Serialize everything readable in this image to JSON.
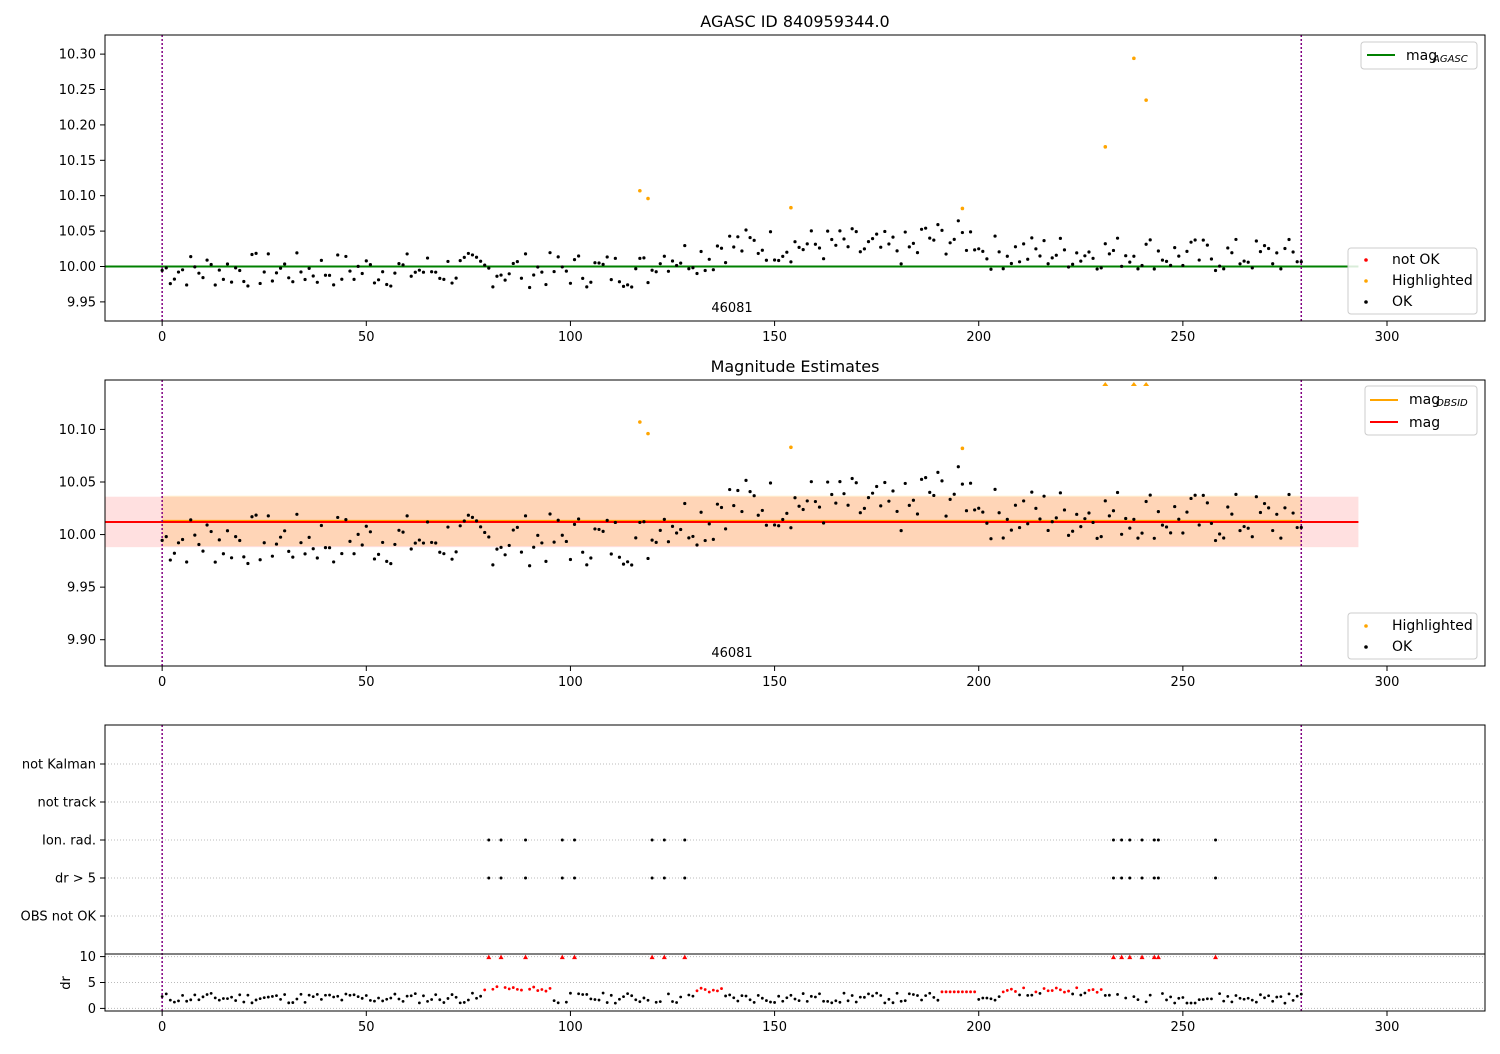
{
  "chart_data": [
    {
      "type": "scatter",
      "title": "AGASC ID 840959344.0",
      "xlim": [
        -14,
        324
      ],
      "ylim": [
        9.923,
        10.327
      ],
      "xticks": [
        0,
        50,
        100,
        150,
        200,
        250,
        300
      ],
      "yticks": [
        9.95,
        10.0,
        10.05,
        10.1,
        10.15,
        10.2,
        10.25,
        10.3
      ],
      "ytick_labels": [
        "9.95",
        "10.00",
        "10.05",
        "10.10",
        "10.15",
        "10.20",
        "10.25",
        "10.30"
      ],
      "obsid_label": "46081",
      "vlines": [
        0,
        279
      ],
      "mag_agasc": 10.0,
      "line_legend": {
        "entries": [
          {
            "label": "mag",
            "sub": "AGASC",
            "color": "#008000"
          }
        ],
        "position": "top-right"
      },
      "point_legend": {
        "entries": [
          {
            "label": "not OK",
            "color": "#ff0000"
          },
          {
            "label": "Highlighted",
            "color": "#ffa500"
          },
          {
            "label": "OK",
            "color": "#000000"
          }
        ],
        "position": "bottom-right"
      },
      "highlighted": [
        [
          117,
          10.107
        ],
        [
          119,
          10.096
        ],
        [
          154,
          10.083
        ],
        [
          196,
          10.082
        ],
        [
          231,
          10.169
        ],
        [
          238,
          10.294
        ],
        [
          241,
          10.235
        ]
      ]
    },
    {
      "type": "scatter",
      "title": "Magnitude Estimates",
      "xlim": [
        -14,
        324
      ],
      "ylim": [
        9.875,
        10.147
      ],
      "xticks": [
        0,
        50,
        100,
        150,
        200,
        250,
        300
      ],
      "yticks": [
        9.9,
        9.95,
        10.0,
        10.05,
        10.1
      ],
      "ytick_labels": [
        "9.90",
        "9.95",
        "10.00",
        "10.05",
        "10.10"
      ],
      "obsid_label": "46081",
      "vlines": [
        0,
        279
      ],
      "mag": 10.012,
      "mag_band": [
        9.988,
        10.036
      ],
      "mag_obsid": 10.013,
      "mag_obsid_band": [
        9.989,
        10.037
      ],
      "line_legend": {
        "entries": [
          {
            "label": "mag",
            "sub": "OBSID",
            "color": "#ffa500"
          },
          {
            "label": "mag",
            "sub": "",
            "color": "#ff0000"
          }
        ],
        "position": "top-right"
      },
      "point_legend": {
        "entries": [
          {
            "label": "Highlighted",
            "color": "#ffa500"
          },
          {
            "label": "OK",
            "color": "#000000"
          }
        ],
        "position": "bottom-right"
      },
      "highlighted": [
        [
          117,
          10.107
        ],
        [
          119,
          10.096
        ],
        [
          154,
          10.083
        ],
        [
          196,
          10.082
        ]
      ],
      "off_scale_markers_x": [
        231,
        238,
        241
      ]
    },
    {
      "type": "scatter",
      "title": "",
      "xlim": [
        -14,
        324
      ],
      "xticks": [
        0,
        50,
        100,
        150,
        200,
        250,
        300
      ],
      "vlines": [
        0,
        279
      ],
      "flag_rows": [
        "not Kalman",
        "not track",
        "Ion. rad.",
        "dr > 5",
        "OBS not OK"
      ],
      "flag_points": {
        "Ion. rad.": [
          80,
          83,
          89,
          98,
          101,
          120,
          123,
          128,
          233,
          235,
          237,
          240,
          243,
          244,
          258
        ],
        "dr > 5": [
          80,
          83,
          89,
          98,
          101,
          120,
          123,
          128,
          233,
          235,
          237,
          240,
          243,
          244,
          258
        ]
      },
      "dr_ylabel": "dr",
      "dr_ylim": [
        -0.5,
        10.5
      ],
      "dr_yticks": [
        0,
        5,
        10
      ],
      "dr_clipped_x": [
        80,
        83,
        89,
        98,
        101,
        120,
        123,
        128,
        233,
        235,
        237,
        240,
        243,
        244,
        258
      ]
    }
  ]
}
